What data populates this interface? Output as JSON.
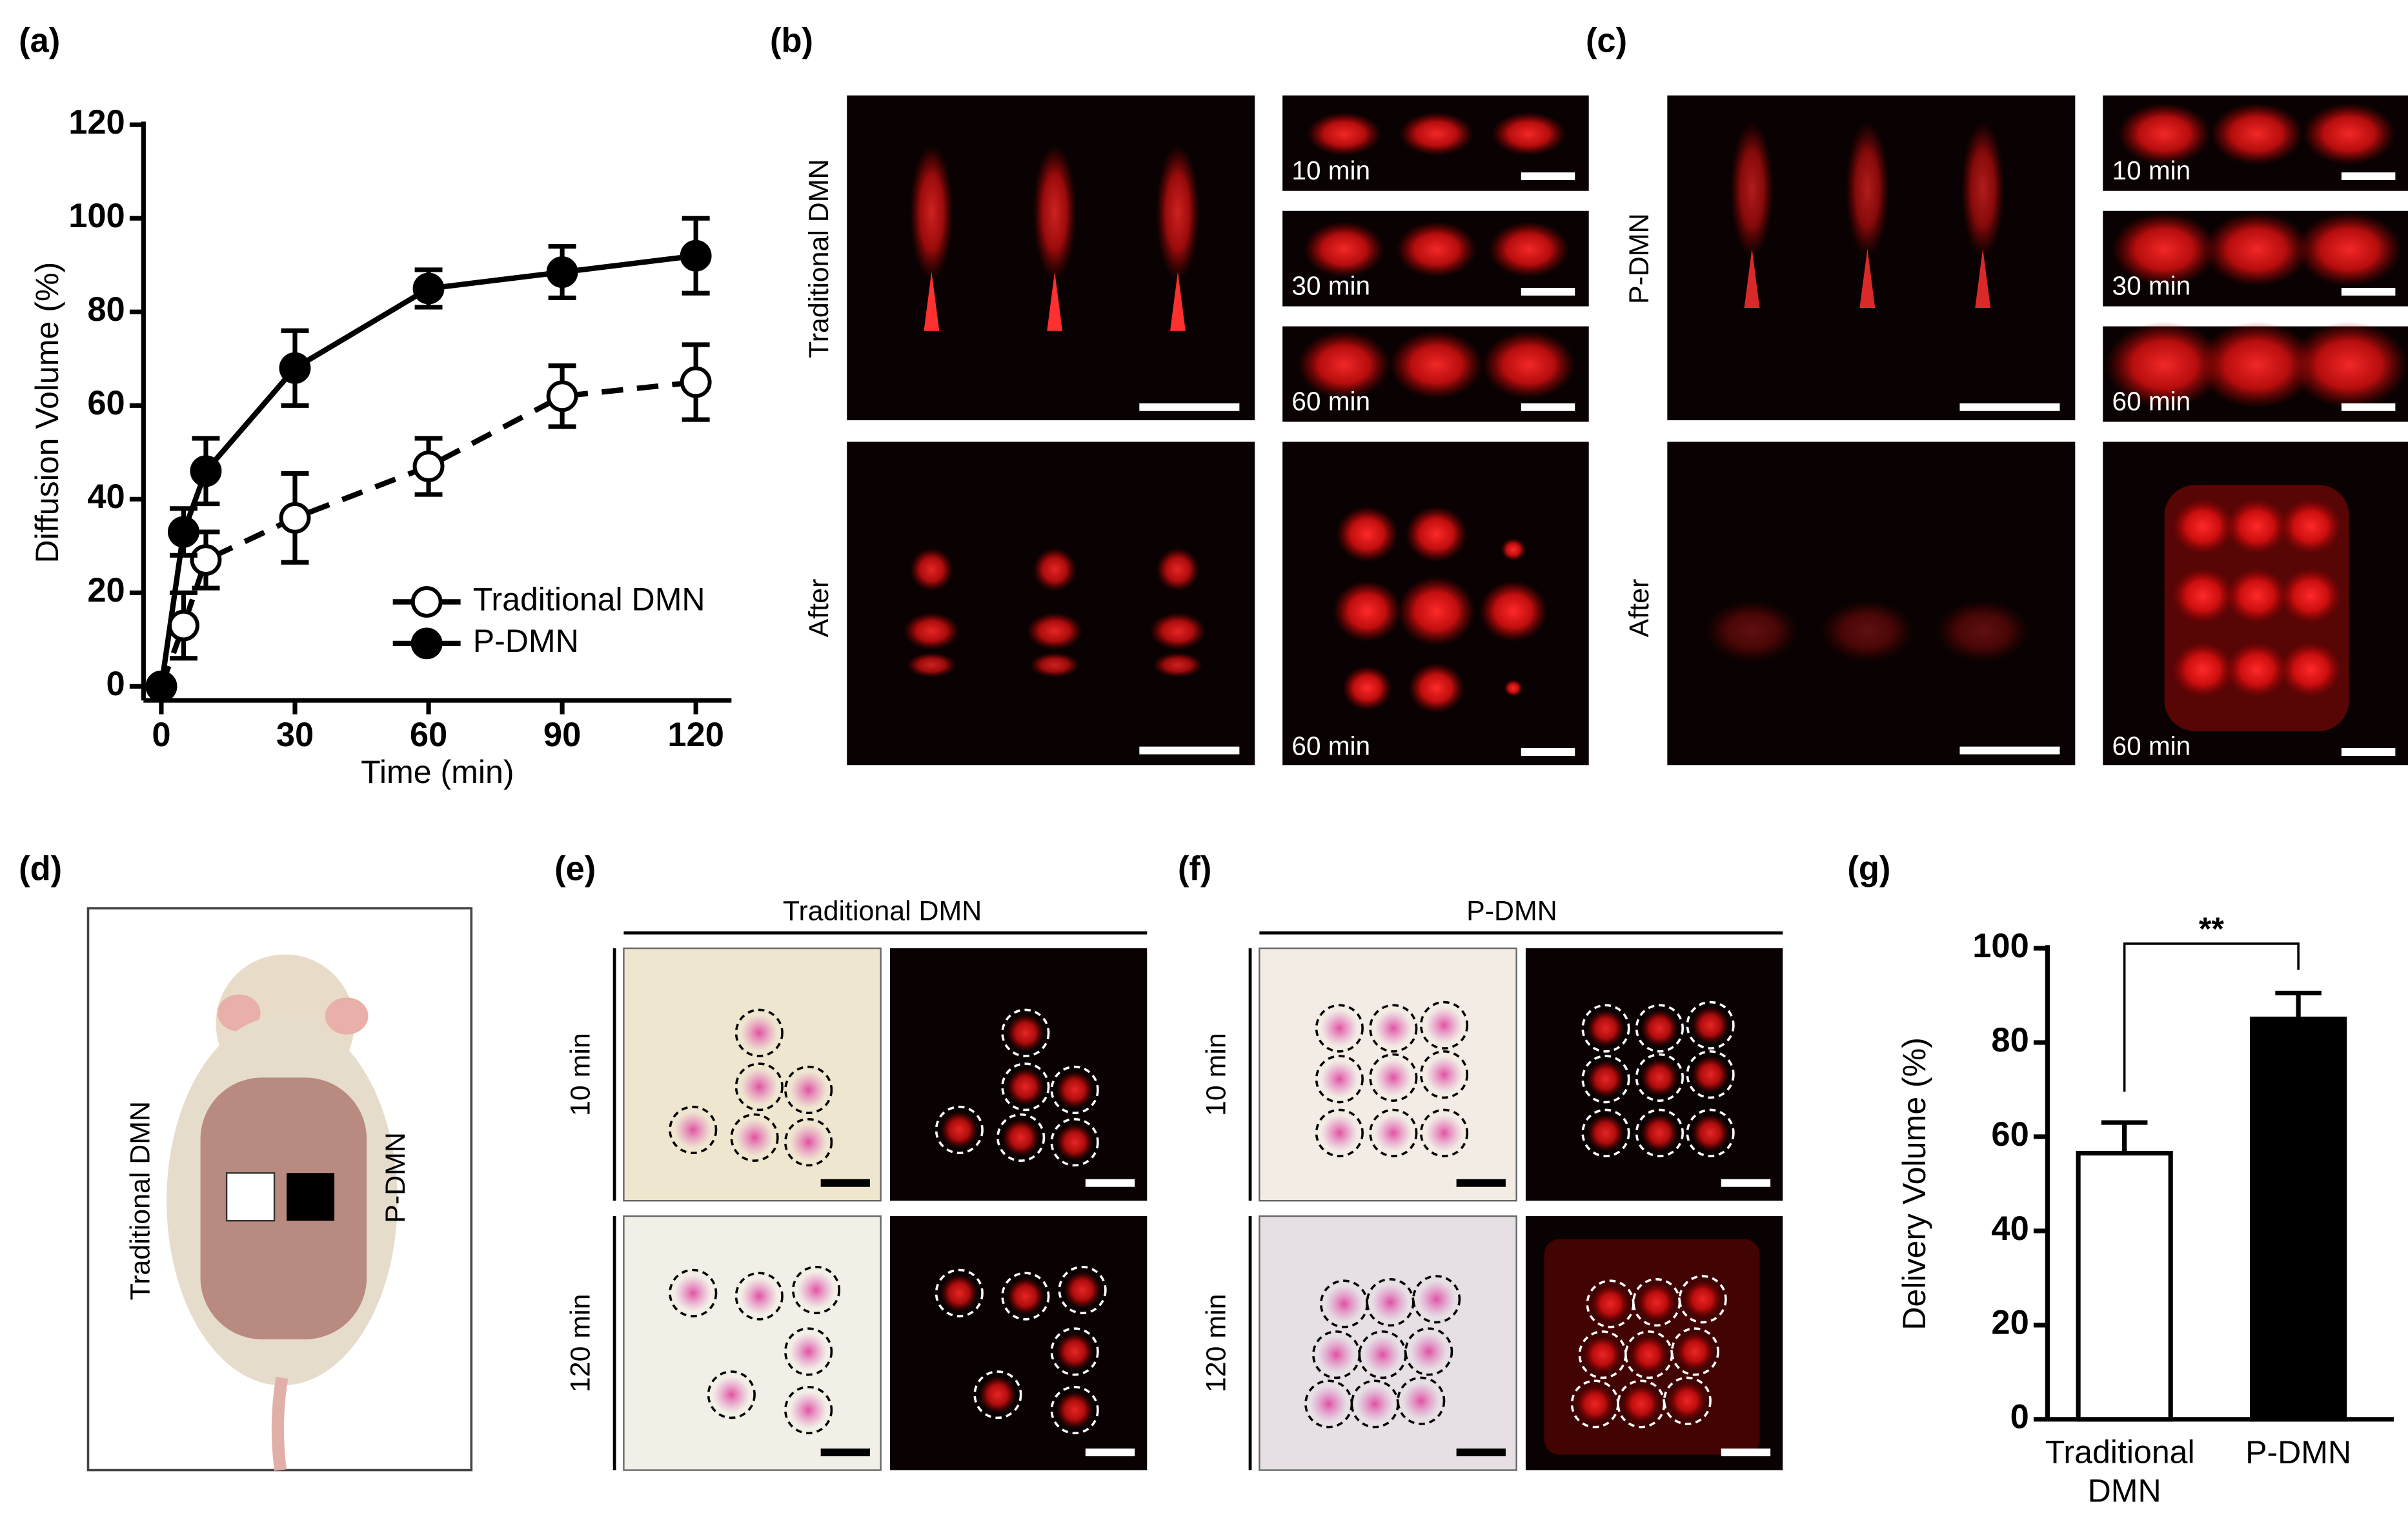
{
  "chart_data": [
    {
      "type": "line",
      "xlabel": "Time (min)",
      "ylabel": "Diffusion Volume (%)",
      "x": [
        0,
        5,
        10,
        30,
        60,
        90,
        120
      ],
      "series": [
        {
          "name": "Traditional DMN",
          "color": "#000000",
          "marker_fill": "#ffffff",
          "linestyle": "dashed",
          "values": [
            0,
            13,
            27,
            36,
            47,
            62,
            65
          ],
          "errors": [
            0,
            7,
            6,
            9.5,
            6,
            6.5,
            8
          ]
        },
        {
          "name": "P-DMN",
          "color": "#000000",
          "marker_fill": "#000000",
          "linestyle": "solid",
          "values": [
            0,
            33,
            46,
            68,
            85,
            88.5,
            92
          ],
          "errors": [
            0,
            5,
            7,
            8,
            4,
            5.5,
            8
          ]
        }
      ],
      "xlim": [
        -4,
        128
      ],
      "xticks": [
        0,
        30,
        60,
        90,
        120
      ],
      "ylim": [
        -3,
        120
      ],
      "yticks": [
        0,
        20,
        40,
        60,
        80,
        100,
        120
      ],
      "legend": "lower right"
    },
    {
      "type": "bar",
      "ylabel": "Delivery Volume (%)",
      "categories": [
        "Traditional DMN",
        "P-DMN"
      ],
      "values": [
        56.5,
        85
      ],
      "errors": [
        6.5,
        5.5
      ],
      "colors": [
        "#ffffff",
        "#000000"
      ],
      "ylim": [
        0,
        100
      ],
      "yticks": [
        0,
        20,
        40,
        60,
        80,
        100
      ],
      "annotation": "**"
    }
  ],
  "panels": {
    "labels": [
      "(a)",
      "(b)",
      "(c)",
      "(d)",
      "(e)",
      "(f)",
      "(g)"
    ],
    "b": {
      "row_labels": [
        "Traditional DMN",
        "After"
      ],
      "time_labels": [
        "10 min",
        "30 min",
        "60 min",
        "60 min"
      ]
    },
    "c": {
      "row_labels": [
        "P-DMN",
        "After"
      ],
      "time_labels": [
        "10 min",
        "30 min",
        "60 min",
        "60 min"
      ]
    },
    "d": {
      "labels": [
        "Traditional DMN",
        "P-DMN"
      ]
    },
    "e": {
      "title": "Traditional DMN",
      "row_labels": [
        "10 min",
        "120 min"
      ]
    },
    "f": {
      "title": "P-DMN",
      "row_labels": [
        "10 min",
        "120 min"
      ]
    }
  }
}
